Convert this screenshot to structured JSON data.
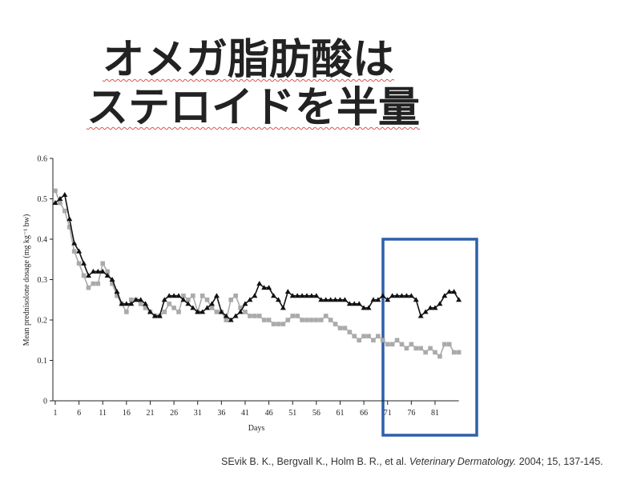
{
  "slide": {
    "title": [
      "オメガ脂肪酸は",
      "ステロイドを半量"
    ]
  },
  "chart_data": {
    "type": "line",
    "x_label": "Days",
    "y_label": "Mean prednisolone dosage (mg kg⁻¹ bw)",
    "x": [
      1,
      2,
      3,
      4,
      5,
      6,
      7,
      8,
      9,
      10,
      11,
      12,
      13,
      14,
      15,
      16,
      17,
      18,
      19,
      20,
      21,
      22,
      23,
      24,
      25,
      26,
      27,
      28,
      29,
      30,
      31,
      32,
      33,
      34,
      35,
      36,
      37,
      38,
      39,
      40,
      41,
      42,
      43,
      44,
      45,
      46,
      47,
      48,
      49,
      50,
      51,
      52,
      53,
      54,
      55,
      56,
      57,
      58,
      59,
      60,
      61,
      62,
      63,
      64,
      65,
      66,
      67,
      68,
      69,
      70,
      71,
      72,
      73,
      74,
      75,
      76,
      77,
      78,
      79,
      80,
      81,
      82,
      83,
      84,
      85,
      86
    ],
    "series": [
      {
        "color": "#111111",
        "marker": "triangle",
        "values": [
          0.49,
          0.5,
          0.51,
          0.45,
          0.39,
          0.37,
          0.34,
          0.31,
          0.32,
          0.32,
          0.32,
          0.31,
          0.3,
          0.27,
          0.24,
          0.24,
          0.24,
          0.25,
          0.25,
          0.24,
          0.22,
          0.21,
          0.21,
          0.25,
          0.26,
          0.26,
          0.26,
          0.25,
          0.24,
          0.23,
          0.22,
          0.22,
          0.23,
          0.24,
          0.26,
          0.22,
          0.21,
          0.2,
          0.21,
          0.22,
          0.24,
          0.25,
          0.26,
          0.29,
          0.28,
          0.28,
          0.26,
          0.25,
          0.23,
          0.27,
          0.26,
          0.26,
          0.26,
          0.26,
          0.26,
          0.26,
          0.25,
          0.25,
          0.25,
          0.25,
          0.25,
          0.25,
          0.24,
          0.24,
          0.24,
          0.23,
          0.23,
          0.25,
          0.25,
          0.26,
          0.25,
          0.26,
          0.26,
          0.26,
          0.26,
          0.26,
          0.25,
          0.21,
          0.22,
          0.23,
          0.23,
          0.24,
          0.26,
          0.27,
          0.27,
          0.25
        ]
      },
      {
        "color": "#aaaaaa",
        "marker": "square",
        "values": [
          0.52,
          0.49,
          0.47,
          0.43,
          0.37,
          0.34,
          0.31,
          0.28,
          0.29,
          0.29,
          0.34,
          0.32,
          0.29,
          0.26,
          0.24,
          0.22,
          0.25,
          0.25,
          0.24,
          0.23,
          0.22,
          0.21,
          0.21,
          0.22,
          0.24,
          0.23,
          0.22,
          0.26,
          0.25,
          0.26,
          0.22,
          0.26,
          0.25,
          0.23,
          0.22,
          0.22,
          0.2,
          0.25,
          0.26,
          0.23,
          0.22,
          0.21,
          0.21,
          0.21,
          0.2,
          0.2,
          0.19,
          0.19,
          0.19,
          0.2,
          0.21,
          0.21,
          0.2,
          0.2,
          0.2,
          0.2,
          0.2,
          0.21,
          0.2,
          0.19,
          0.18,
          0.18,
          0.17,
          0.16,
          0.15,
          0.16,
          0.16,
          0.15,
          0.16,
          0.15,
          0.14,
          0.14,
          0.15,
          0.14,
          0.13,
          0.14,
          0.13,
          0.13,
          0.12,
          0.13,
          0.12,
          0.11,
          0.14,
          0.14,
          0.12,
          0.12
        ]
      }
    ],
    "xlim": [
      0.5,
      86
    ],
    "xticks": [
      1,
      6,
      11,
      16,
      21,
      26,
      31,
      36,
      41,
      46,
      51,
      56,
      61,
      66,
      71,
      76,
      81
    ],
    "ylim": [
      0,
      0.6
    ],
    "yticks": [
      0,
      0.1,
      0.2,
      0.3,
      0.4,
      0.5,
      0.6
    ],
    "grid": false
  },
  "citation": {
    "authors": "SEvik B. K., Bergvall K., Holm B. R., et al.",
    "journal": "Veterinary Dermatology.",
    "details": "2004; 15, 137-145."
  }
}
